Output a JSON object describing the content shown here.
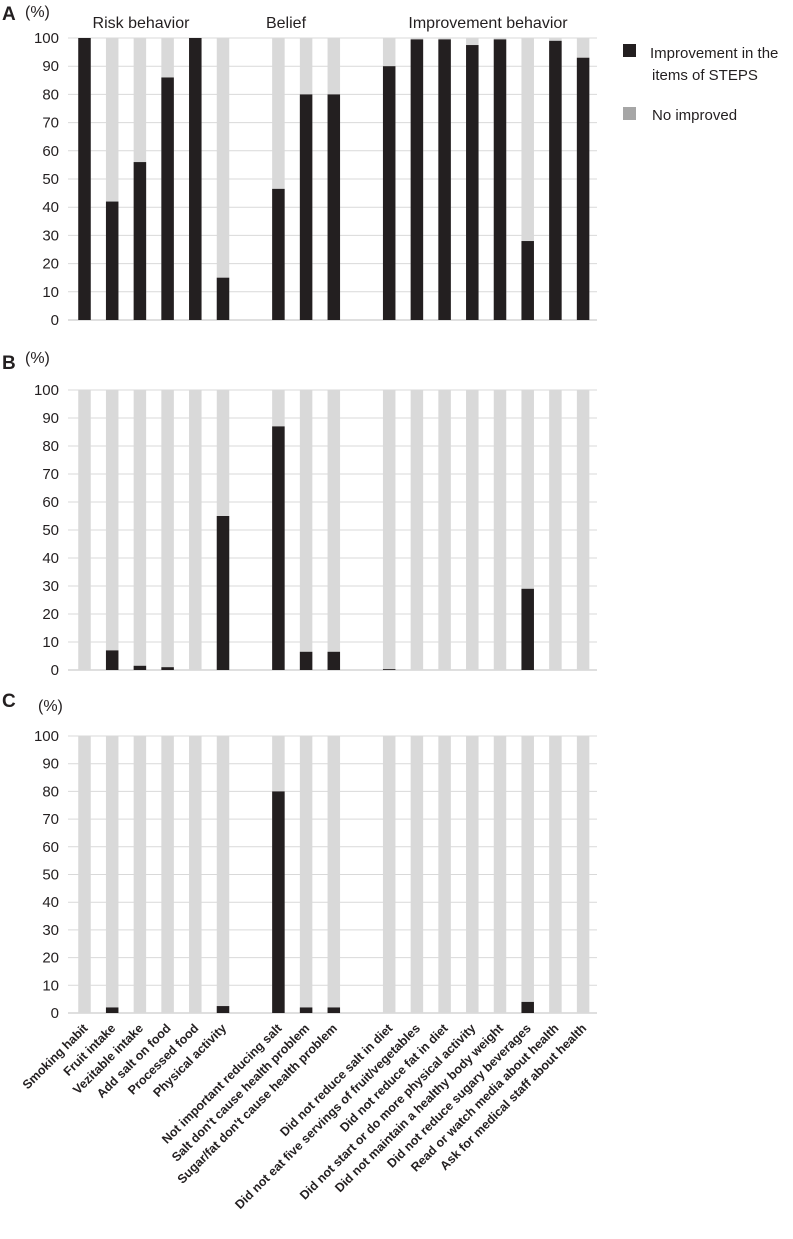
{
  "chart_data": {
    "type": "bar",
    "stacked": true,
    "grid": true,
    "legend_position": "right",
    "ylim": [
      0,
      100
    ],
    "y_ticks": [
      "0",
      "10",
      "20",
      "30",
      "40",
      "50",
      "60",
      "70",
      "80",
      "90",
      "100"
    ],
    "unit_label": "(%)",
    "groups": [
      {
        "label": "Risk behavior",
        "start": 0,
        "end": 5
      },
      {
        "label": "Belief",
        "start": 6,
        "end": 8
      },
      {
        "label": "Improvement behavior",
        "start": 9,
        "end": 16
      }
    ],
    "categories": [
      "Smoking habit",
      "Fruit intake",
      "Vezitable intake",
      "Add salt on food",
      "Processed food",
      "Physical activity",
      "Not important reducing salt",
      "Salt don't cause health problem",
      "Sugar/fat don't cause health problem",
      "Did not reduce salt in diet",
      "Did not eat five servings of fruit/vegetables",
      "Did not reduce fat in diet",
      "Did not start or do more physical activity",
      "Did not maintain a healthy body weight",
      "Did not reduce sugary beverages",
      "Read or watch media about health",
      "Ask for medical staff about health"
    ],
    "legend": [
      {
        "label": "Improvement in the items of STEPS",
        "color": "#231f20"
      },
      {
        "label": "No improved",
        "color": "#a6a6a6"
      }
    ],
    "colors": {
      "improved": "#231f20",
      "not_improved": "#d9d9d9"
    },
    "panels": [
      {
        "letter": "A",
        "values": [
          100,
          42,
          56,
          86,
          100,
          15,
          46.5,
          80,
          80,
          90,
          99.5,
          99.5,
          97.5,
          99.5,
          28,
          99,
          93
        ]
      },
      {
        "letter": "B",
        "values": [
          0,
          7,
          1.5,
          1,
          0,
          55,
          87,
          6.5,
          6.5,
          0.3,
          0,
          0,
          0,
          0,
          29,
          0,
          0
        ]
      },
      {
        "letter": "C",
        "values": [
          0,
          2,
          0,
          0,
          0,
          2.5,
          80,
          2,
          2,
          0,
          0,
          0,
          0,
          0,
          4,
          0,
          0
        ]
      }
    ]
  }
}
